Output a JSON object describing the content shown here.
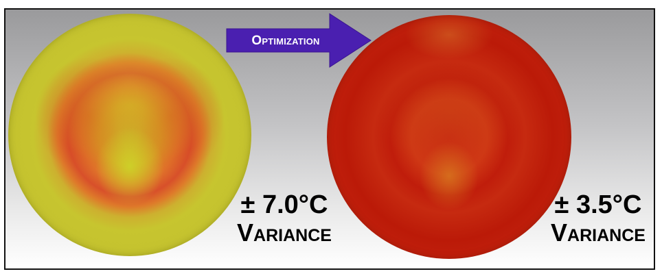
{
  "arrow": {
    "label": "Optimization",
    "color": "#4a1fb0"
  },
  "before": {
    "value": "± 7.0°C",
    "label": "Variance"
  },
  "after": {
    "value": "± 3.5°C",
    "label": "Variance"
  }
}
